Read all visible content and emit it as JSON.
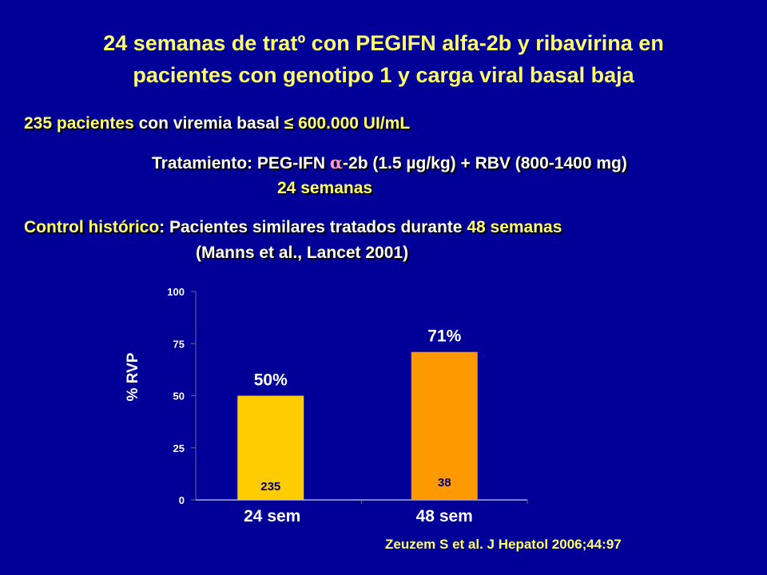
{
  "slide": {
    "title_line1": "24 semanas de tratº con PEGIFN alfa-2b y ribavirina en",
    "title_line2": "pacientes con genotipo 1 y carga viral basal baja",
    "line1_a": "235 pacientes",
    "line1_b": " con viremia basal ",
    "line1_c": "≤ 600.000 UI/mL",
    "line2_a": "Tratamiento: PEG-IFN ",
    "line2_alpha": "α",
    "line2_b": "-2b (1.5 µg/kg) + RBV (800-1400 mg)",
    "line3": "24 semanas",
    "line4_a": "Control histórico",
    "line4_b": ": Pacientes similares tratados durante ",
    "line4_c": "48 semanas",
    "line5": "(Manns et al., Lancet 2001)",
    "reference": "Zeuzem S et al. J Hepatol 2006;44:97"
  },
  "colors": {
    "background": "#000099",
    "title": "#ffff66",
    "bar_24": "#ffcc00",
    "bar_48": "#ff9900"
  },
  "chart_data": {
    "type": "bar",
    "categories": [
      "24 sem",
      "48 sem"
    ],
    "values": [
      50,
      71
    ],
    "value_labels": [
      "50%",
      "71%"
    ],
    "n_labels": [
      "235",
      "38"
    ],
    "ylabel": "% RVP",
    "ylim": [
      0,
      100
    ],
    "yticks": [
      0,
      25,
      50,
      75,
      100
    ],
    "tick_labels": [
      "0",
      "25",
      "50",
      "75",
      "100"
    ],
    "grid": false
  }
}
